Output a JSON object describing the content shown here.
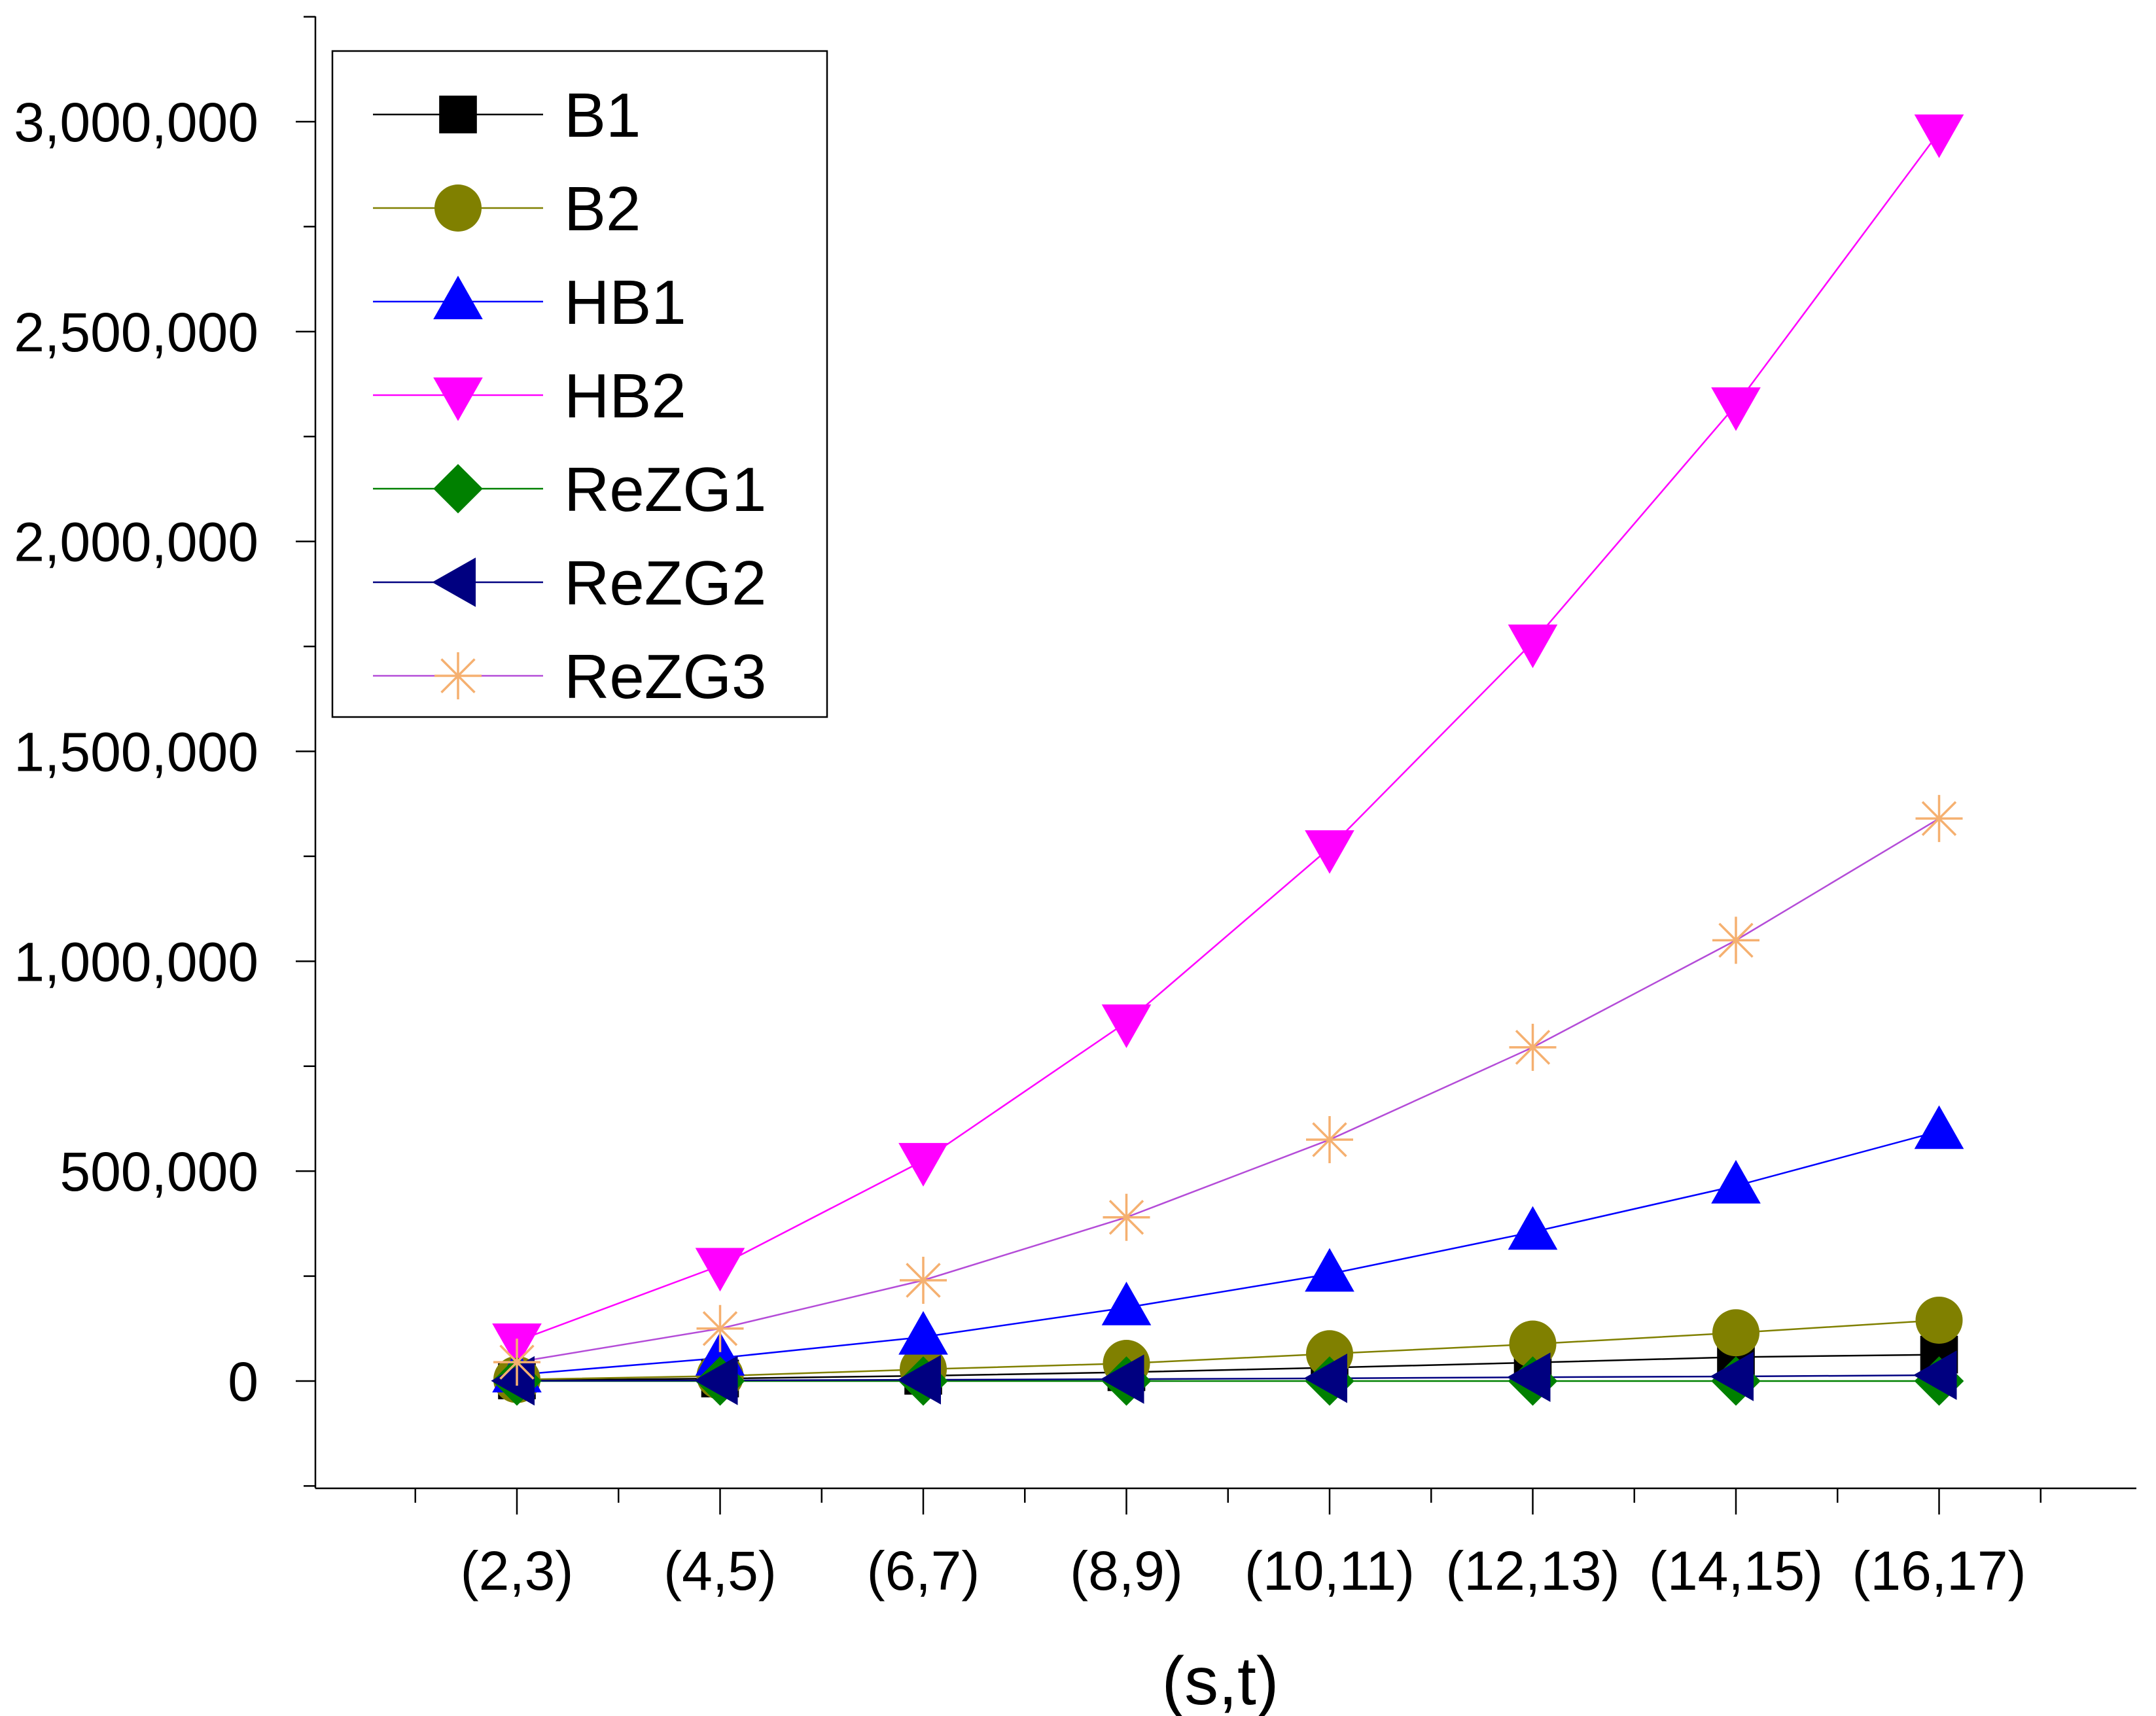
{
  "chart_data": {
    "type": "line",
    "title": "",
    "xlabel": "(s,t)",
    "ylabel": "",
    "categories": [
      "(2,3)",
      "(4,5)",
      "(6,7)",
      "(8,9)",
      "(10,11)",
      "(12,13)",
      "(14,15)",
      "(16,17)"
    ],
    "ylim": [
      -250000,
      3250000
    ],
    "yticks": [
      0,
      500000,
      1000000,
      1500000,
      2000000,
      2500000,
      3000000
    ],
    "ytick_labels": [
      "0",
      "500,000",
      "1,000,000",
      "1,500,000",
      "2,000,000",
      "2,500,000",
      "3,000,000"
    ],
    "grid": false,
    "legend_position": "top-left",
    "series": [
      {
        "name": "B1",
        "color": "#000000",
        "marker": "square",
        "values": [
          1500,
          6000,
          12500,
          21000,
          32000,
          44000,
          57000,
          63000
        ]
      },
      {
        "name": "B2",
        "color": "#808000",
        "marker": "circle",
        "values": [
          3500,
          12000,
          28000,
          42000,
          65000,
          88000,
          115000,
          145000
        ]
      },
      {
        "name": "HB1",
        "color": "#0000ff",
        "marker": "triangle-up",
        "values": [
          15000,
          55000,
          105000,
          175000,
          255000,
          355000,
          465000,
          595000
        ]
      },
      {
        "name": "HB2",
        "color": "#ff00ff",
        "marker": "triangle-down",
        "values": [
          95000,
          275000,
          525000,
          855000,
          1270000,
          1760000,
          2325000,
          2975000
        ]
      },
      {
        "name": "ReZG1",
        "color": "#008000",
        "marker": "diamond",
        "values": [
          0,
          0,
          0,
          0,
          0,
          0,
          0,
          0
        ]
      },
      {
        "name": "ReZG2",
        "color": "#000080",
        "marker": "triangle-left",
        "values": [
          500,
          1500,
          3000,
          4500,
          6500,
          9000,
          11000,
          14000
        ]
      },
      {
        "name": "ReZG3",
        "color": "#f5b070",
        "line_color": "#b44cd8",
        "marker": "asterisk",
        "values": [
          45000,
          125000,
          240000,
          390000,
          575000,
          795000,
          1050000,
          1340000
        ]
      }
    ]
  }
}
